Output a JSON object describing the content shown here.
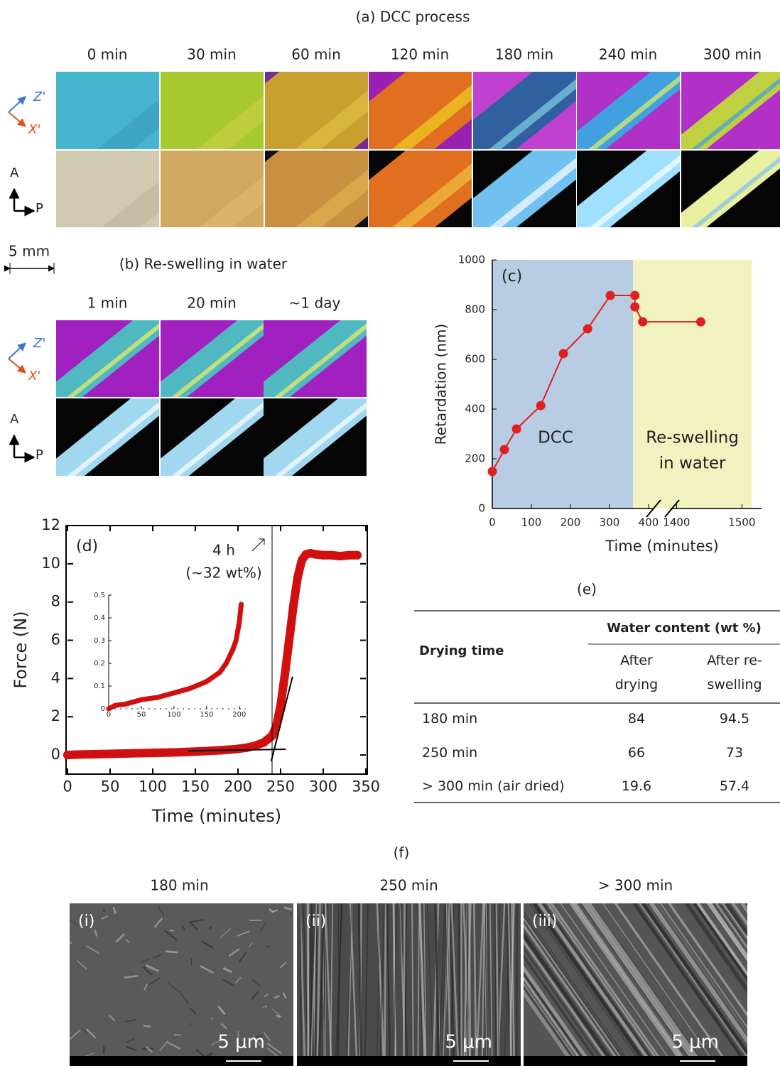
{
  "panel_a": {
    "title": "(a) DCC process",
    "times": [
      "0 min",
      "30 min",
      "60 min",
      "120 min",
      "180 min",
      "240 min",
      "300 min"
    ],
    "axes_labels": {
      "z": "Z'",
      "x": "X'",
      "a": "A",
      "p": "P"
    }
  },
  "scale_bar": "5 mm",
  "panel_b": {
    "title": "(b) Re-swelling in water",
    "times": [
      "1 min",
      "20 min",
      "~1 day"
    ],
    "axes_labels": {
      "z": "Z'",
      "x": "X'",
      "a": "A",
      "p": "P"
    }
  },
  "chart_data": [
    {
      "type": "line",
      "label": "(c)",
      "x_label": "Time (minutes)",
      "y_label": "Retardation (nm)",
      "xlim": [
        0,
        1530
      ],
      "xbreak": [
        420,
        1380
      ],
      "xticks": [
        0,
        100,
        200,
        300,
        400,
        1400,
        1500
      ],
      "ylim": [
        0,
        1000
      ],
      "yticks": [
        0,
        200,
        400,
        600,
        800,
        1000
      ],
      "regions": [
        {
          "label": [
            "DCC"
          ],
          "span": [
            0,
            360
          ],
          "color": "#b8cce4"
        },
        {
          "label": [
            "Re-swelling",
            "in water"
          ],
          "span": [
            360,
            1515
          ],
          "color": "#f2f2c0"
        }
      ],
      "series": [
        {
          "color": "#e02020",
          "x": [
            0,
            31,
            62,
            124,
            182,
            244,
            302,
            365,
            365,
            385,
            1437
          ],
          "values": [
            149,
            237,
            320,
            414,
            623,
            723,
            857,
            857,
            811,
            751,
            751
          ]
        }
      ]
    },
    {
      "type": "scatter",
      "label": "(d)",
      "x_label": "Time (minutes)",
      "y_label": "Force (N)",
      "xlim": [
        0,
        350
      ],
      "ylim": [
        -1,
        12
      ],
      "xticks": [
        0,
        50,
        100,
        150,
        200,
        250,
        300,
        350
      ],
      "yticks": [
        0,
        2,
        4,
        6,
        8,
        10,
        12
      ],
      "annotations": [
        {
          "text": [
            "4 h",
            "(~32 wt%)"
          ],
          "x": 240
        }
      ],
      "tangents": [
        [
          [
            142,
            0.22
          ],
          [
            256,
            0.3
          ]
        ],
        [
          [
            239,
            -0.33
          ],
          [
            264,
            4.1
          ]
        ]
      ],
      "series": [
        {
          "color": "#d01010",
          "x": [
            0,
            10,
            20,
            30,
            40,
            50,
            60,
            70,
            80,
            90,
            100,
            110,
            120,
            130,
            140,
            150,
            160,
            170,
            180,
            190,
            200,
            210,
            220,
            230,
            240,
            245,
            250,
            255,
            260,
            265,
            270,
            275,
            280,
            285,
            290,
            300,
            310,
            320,
            330,
            340
          ],
          "values": [
            0.0,
            0.02,
            0.03,
            0.04,
            0.05,
            0.06,
            0.07,
            0.08,
            0.09,
            0.1,
            0.11,
            0.12,
            0.13,
            0.14,
            0.16,
            0.18,
            0.2,
            0.22,
            0.25,
            0.28,
            0.32,
            0.38,
            0.48,
            0.65,
            1.0,
            1.5,
            2.6,
            4.2,
            6.0,
            7.8,
            9.3,
            10.2,
            10.5,
            10.55,
            10.5,
            10.45,
            10.45,
            10.4,
            10.45,
            10.45
          ]
        }
      ]
    },
    {
      "type": "scatter",
      "xlim": [
        0,
        210
      ],
      "ylim": [
        0,
        0.5
      ],
      "xticks": [
        0,
        50,
        100,
        150,
        200
      ],
      "yticks": [
        0,
        0.1,
        0.2,
        0.3,
        0.4,
        0.5
      ],
      "series": [
        {
          "color": "#d01010",
          "x": [
            0,
            10,
            25,
            50,
            75,
            100,
            125,
            150,
            170,
            180,
            190,
            195,
            200,
            203
          ],
          "values": [
            0,
            0.015,
            0.02,
            0.04,
            0.05,
            0.07,
            0.09,
            0.12,
            0.16,
            0.2,
            0.26,
            0.3,
            0.38,
            0.46
          ]
        }
      ]
    }
  ],
  "table": {
    "title": "(e)",
    "header": {
      "drying_time": "Drying time",
      "group": "Water content (wt %)",
      "columns": [
        "After drying",
        "After re-swelling"
      ]
    },
    "rows": [
      [
        "180 min",
        84,
        94.5
      ],
      [
        "250 min",
        66,
        73
      ],
      [
        "> 300 min (air dried)",
        19.6,
        57.4
      ]
    ]
  },
  "panel_f": {
    "title": "(f)",
    "images": [
      {
        "time": "180 min",
        "label": "(i)",
        "scale": "5 μm"
      },
      {
        "time": "250 min",
        "label": "(ii)",
        "scale": "5 μm"
      },
      {
        "time": "> 300 min",
        "label": "(iii)",
        "scale": "5 μm"
      }
    ]
  }
}
